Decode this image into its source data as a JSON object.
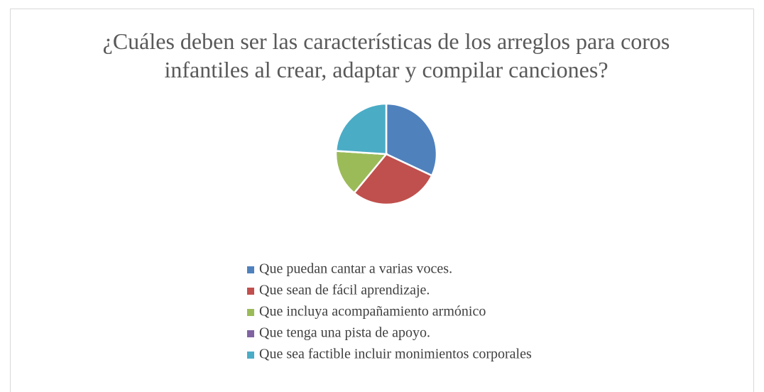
{
  "chart_data": {
    "type": "pie",
    "title": "¿Cuáles deben ser las características de los arreglos para coros infantiles al crear, adaptar y compilar canciones?",
    "categories": [
      "Que puedan cantar a varias voces.",
      "Que sean de fácil aprendizaje.",
      "Que incluya acompañamiento armónico",
      "Que tenga una pista de apoyo.",
      "Que sea factible incluir monimientos corporales"
    ],
    "values": [
      32,
      29,
      15,
      0,
      24
    ],
    "colors": [
      "#4f81bd",
      "#c0504d",
      "#9bbb59",
      "#8064a2",
      "#4bacc6"
    ],
    "legend": "bottom"
  }
}
